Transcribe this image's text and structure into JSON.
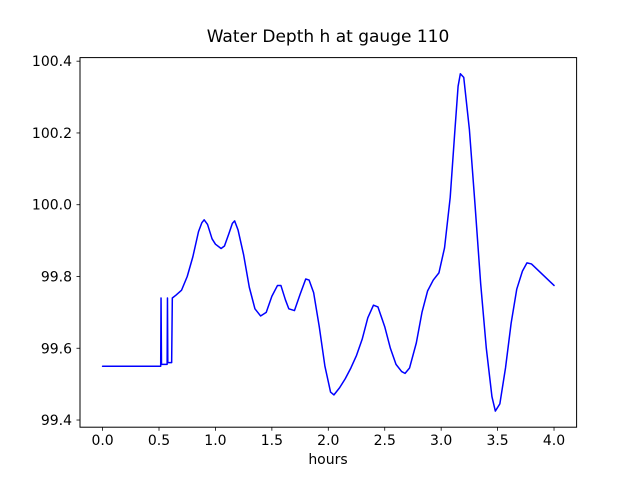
{
  "figure": {
    "background_color": "#ffffff",
    "axes_color": "#000000"
  },
  "chart_data": {
    "type": "line",
    "title": "Water Depth h at gauge 110",
    "xlabel": "hours",
    "ylabel": "",
    "line_color": "#0000ff",
    "grid": false,
    "legend": null,
    "xlim": [
      -0.2,
      4.2
    ],
    "ylim": [
      99.38,
      100.41
    ],
    "xticks": [
      0.0,
      0.5,
      1.0,
      1.5,
      2.0,
      2.5,
      3.0,
      3.5,
      4.0
    ],
    "xtick_labels": [
      "0.0",
      "0.5",
      "1.0",
      "1.5",
      "2.0",
      "2.5",
      "3.0",
      "3.5",
      "4.0"
    ],
    "yticks": [
      99.4,
      99.6,
      99.8,
      100.0,
      100.2,
      100.4
    ],
    "ytick_labels": [
      "99.4",
      "99.6",
      "99.8",
      "100.0",
      "100.2",
      "100.4"
    ],
    "series": [
      {
        "x": [
          0.0,
          0.1,
          0.2,
          0.3,
          0.4,
          0.45,
          0.5,
          0.515,
          0.518,
          0.522,
          0.525,
          0.55,
          0.572,
          0.575,
          0.578,
          0.6,
          0.612,
          0.618,
          0.65,
          0.7,
          0.75,
          0.8,
          0.85,
          0.88,
          0.9,
          0.93,
          0.97,
          1.0,
          1.05,
          1.08,
          1.12,
          1.15,
          1.17,
          1.2,
          1.25,
          1.3,
          1.35,
          1.4,
          1.45,
          1.5,
          1.55,
          1.58,
          1.62,
          1.65,
          1.7,
          1.75,
          1.8,
          1.83,
          1.87,
          1.92,
          1.97,
          2.02,
          2.05,
          2.1,
          2.15,
          2.2,
          2.25,
          2.3,
          2.35,
          2.4,
          2.44,
          2.5,
          2.55,
          2.6,
          2.65,
          2.68,
          2.72,
          2.78,
          2.83,
          2.88,
          2.93,
          2.98,
          3.03,
          3.08,
          3.12,
          3.15,
          3.17,
          3.2,
          3.25,
          3.3,
          3.35,
          3.4,
          3.45,
          3.48,
          3.52,
          3.57,
          3.62,
          3.67,
          3.72,
          3.76,
          3.8,
          3.85,
          3.9,
          3.95,
          4.0
        ],
        "y": [
          99.55,
          99.55,
          99.55,
          99.55,
          99.55,
          99.55,
          99.55,
          99.55,
          99.74,
          99.555,
          99.555,
          99.555,
          99.555,
          99.74,
          99.56,
          99.56,
          99.56,
          99.74,
          99.748,
          99.762,
          99.8,
          99.855,
          99.925,
          99.95,
          99.958,
          99.945,
          99.905,
          99.89,
          99.878,
          99.885,
          99.92,
          99.948,
          99.955,
          99.93,
          99.86,
          99.77,
          99.71,
          99.69,
          99.7,
          99.745,
          99.775,
          99.775,
          99.735,
          99.71,
          99.705,
          99.75,
          99.793,
          99.79,
          99.755,
          99.66,
          99.55,
          99.478,
          99.47,
          99.49,
          99.515,
          99.545,
          99.58,
          99.625,
          99.685,
          99.72,
          99.715,
          99.66,
          99.6,
          99.555,
          99.535,
          99.53,
          99.545,
          99.615,
          99.7,
          99.76,
          99.79,
          99.81,
          99.88,
          100.02,
          100.2,
          100.33,
          100.365,
          100.355,
          100.21,
          100.0,
          99.78,
          99.6,
          99.465,
          99.425,
          99.445,
          99.545,
          99.67,
          99.765,
          99.815,
          99.838,
          99.835,
          99.82,
          99.805,
          99.79,
          99.775
        ]
      }
    ]
  }
}
